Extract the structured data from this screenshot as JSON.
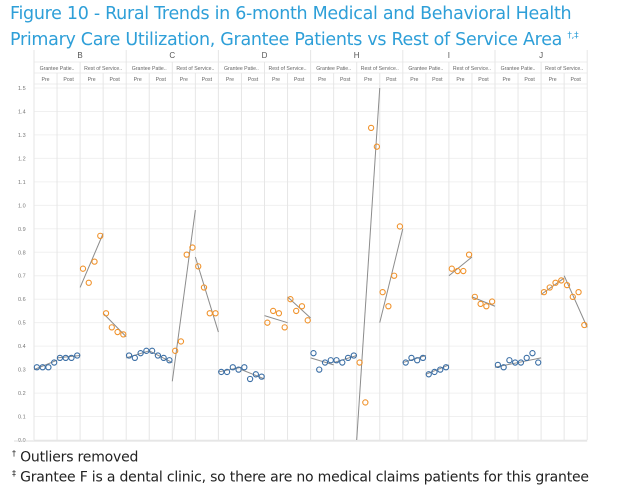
{
  "title": {
    "text": "Figure 10 - Rural Trends in 6-month Medical and Behavioral Health Primary Care Utilization, Grantee Patients vs Rest of Service Area",
    "superscript": "†,‡"
  },
  "footnotes": [
    {
      "mark": "†",
      "text": "Outliers removed"
    },
    {
      "mark": "‡",
      "text": "Grantee F is a dental clinic, so there are no medical claims patients for this grantee"
    }
  ],
  "colors": {
    "grantee": "#3a6ea5",
    "rest": "#f0922b",
    "trend": "#8c8c8c",
    "grid": "#e6e6e6"
  },
  "chart_data": {
    "type": "scatter",
    "title": "Figure 10 - Rural Trends in 6-month Medical and Behavioral Health Primary Care Utilization, Grantee Patients vs Rest of Service Area",
    "xlabel": "",
    "ylabel": "",
    "ylim": [
      0,
      1.5
    ],
    "yticks": [
      "0.0",
      "0.1",
      "0.2",
      "0.3",
      "0.4",
      "0.5",
      "0.6",
      "0.7",
      "0.8",
      "0.9",
      "1.0",
      "1.1",
      "1.2",
      "1.3",
      "1.4",
      "1.5"
    ],
    "grid": true,
    "group_labels": [
      "Grantee Patie..",
      "Rest of Service.."
    ],
    "period_labels": [
      "Pre",
      "Post"
    ],
    "panels": [
      {
        "name": "B",
        "grantee_pre": [
          0.31,
          0.31,
          0.31,
          0.33
        ],
        "grantee_post": [
          0.35,
          0.35,
          0.35,
          0.36
        ],
        "rest_pre": [
          0.73,
          0.67,
          0.76,
          0.87
        ],
        "rest_post": [
          0.54,
          0.48,
          0.46,
          0.45
        ],
        "trend": {
          "grantee_pre": [
            0.3,
            0.34
          ],
          "grantee_post": [
            0.35,
            0.36
          ],
          "rest_pre": [
            0.65,
            0.88
          ],
          "rest_post": [
            0.54,
            0.44
          ]
        }
      },
      {
        "name": "C",
        "grantee_pre": [
          0.36,
          0.35,
          0.37,
          0.38
        ],
        "grantee_post": [
          0.38,
          0.36,
          0.35,
          0.34
        ],
        "rest_pre": [
          0.38,
          0.42,
          0.79,
          0.82
        ],
        "rest_post": [
          0.74,
          0.65,
          0.54,
          0.54
        ],
        "trend": {
          "grantee_pre": [
            0.35,
            0.38
          ],
          "grantee_post": [
            0.38,
            0.33
          ],
          "rest_pre": [
            0.25,
            0.98
          ],
          "rest_post": [
            0.78,
            0.46
          ]
        }
      },
      {
        "name": "D",
        "grantee_pre": [
          0.29,
          0.29,
          0.31,
          0.3
        ],
        "grantee_post": [
          0.31,
          0.26,
          0.28,
          0.27
        ],
        "rest_pre": [
          0.5,
          0.55,
          0.54,
          0.48
        ],
        "rest_post": [
          0.6,
          0.55,
          0.57,
          0.51
        ],
        "trend": {
          "grantee_pre": [
            0.29,
            0.31
          ],
          "grantee_post": [
            0.3,
            0.26
          ],
          "rest_pre": [
            0.53,
            0.5
          ],
          "rest_post": [
            0.61,
            0.52
          ]
        }
      },
      {
        "name": "H",
        "grantee_pre": [
          0.37,
          0.3,
          0.33,
          0.34
        ],
        "grantee_post": [
          0.34,
          0.33,
          0.35,
          0.36
        ],
        "rest_pre": [
          0.33,
          0.16,
          1.33,
          1.25
        ],
        "rest_post": [
          0.63,
          0.57,
          0.7,
          0.91
        ],
        "trend": {
          "grantee_pre": [
            0.35,
            0.32
          ],
          "grantee_post": [
            0.33,
            0.36
          ],
          "rest_pre": [
            0.0,
            1.5
          ],
          "rest_post": [
            0.5,
            0.9
          ]
        }
      },
      {
        "name": "I",
        "grantee_pre": [
          0.33,
          0.35,
          0.34,
          0.35
        ],
        "grantee_post": [
          0.28,
          0.29,
          0.3,
          0.31
        ],
        "rest_pre": [
          0.73,
          0.72,
          0.72,
          0.79
        ],
        "rest_post": [
          0.61,
          0.58,
          0.57,
          0.59
        ],
        "trend": {
          "grantee_pre": [
            0.33,
            0.36
          ],
          "grantee_post": [
            0.28,
            0.32
          ],
          "rest_pre": [
            0.7,
            0.78
          ],
          "rest_post": [
            0.61,
            0.57
          ]
        }
      },
      {
        "name": "J",
        "grantee_pre": [
          0.32,
          0.31,
          0.34,
          0.33
        ],
        "grantee_post": [
          0.33,
          0.35,
          0.37,
          0.33
        ],
        "rest_pre": [
          0.63,
          0.65,
          0.67,
          0.68
        ],
        "rest_post": [
          0.66,
          0.61,
          0.63,
          0.49
        ],
        "trend": {
          "grantee_pre": [
            0.31,
            0.33
          ],
          "grantee_post": [
            0.33,
            0.35
          ],
          "rest_pre": [
            0.62,
            0.69
          ],
          "rest_post": [
            0.7,
            0.48
          ]
        }
      }
    ]
  }
}
